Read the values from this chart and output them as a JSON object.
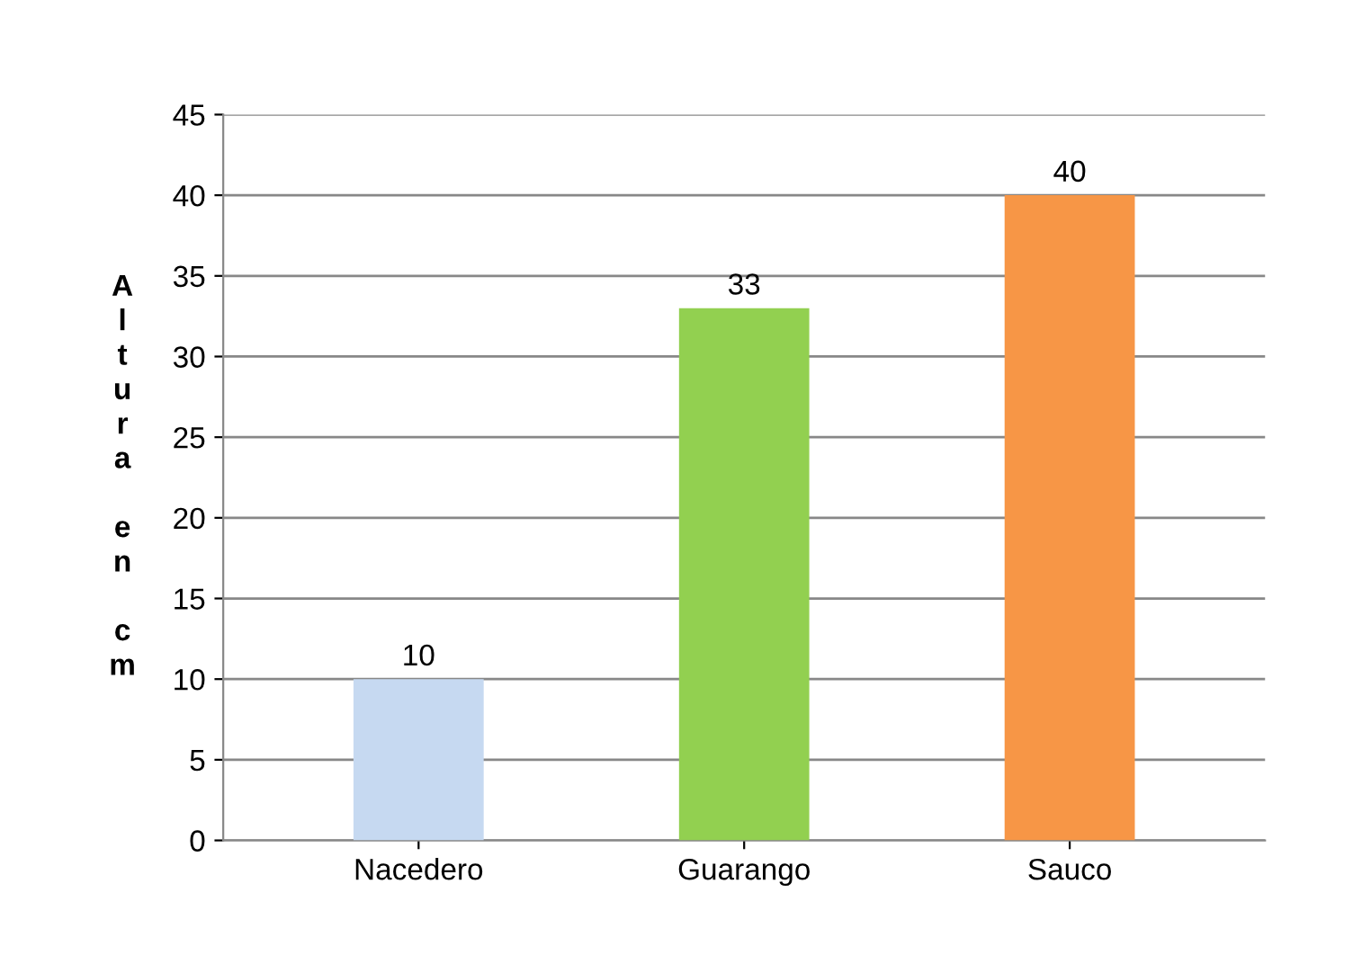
{
  "chart_data": {
    "type": "bar",
    "ylabel": "Altura en cm",
    "categories": [
      "Nacedero",
      "Guarango",
      "Sauco"
    ],
    "values": [
      10,
      33,
      40
    ],
    "colors": [
      "#c6d9f1",
      "#92d050",
      "#f79646"
    ],
    "ylim": [
      0,
      45
    ],
    "yticks": [
      0,
      5,
      10,
      15,
      20,
      25,
      30,
      35,
      40,
      45
    ],
    "grid": "y",
    "data_labels": true,
    "legend": false
  }
}
